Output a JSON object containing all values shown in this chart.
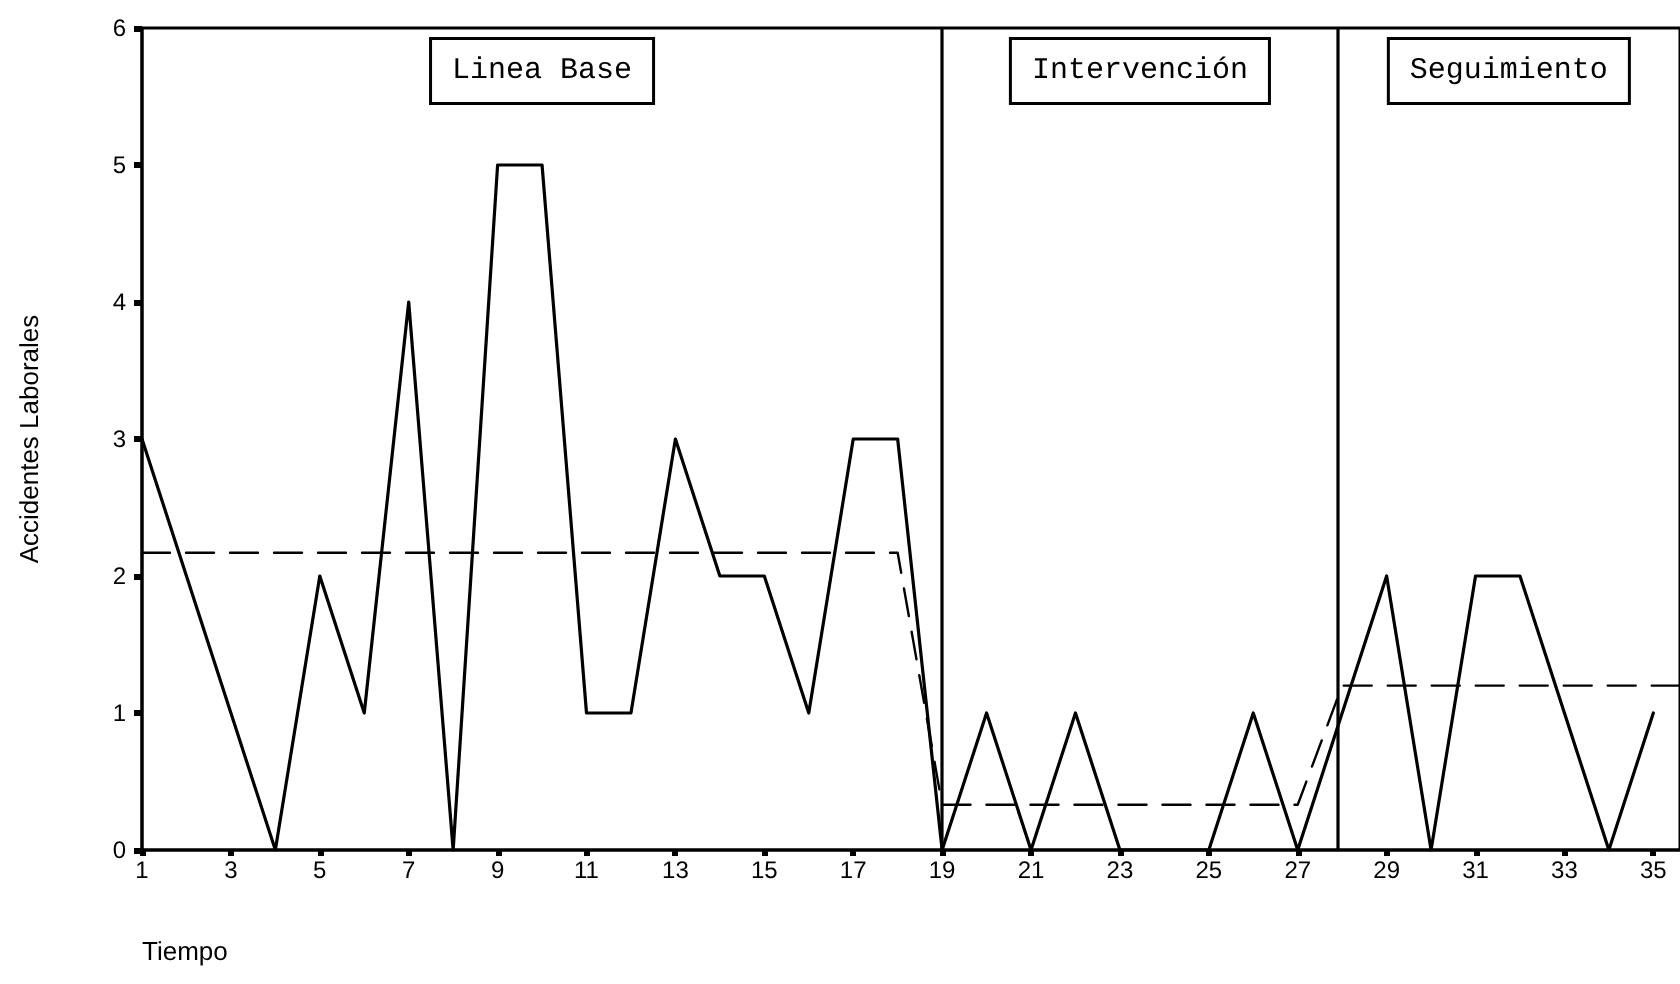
{
  "chart_data": {
    "type": "line",
    "xlabel": "Tiempo",
    "ylabel": "Accidentes Laborales",
    "annotations": [
      "Linea Base",
      "Intervención",
      "Seguimiento"
    ],
    "series": [
      {
        "color": "#000000",
        "x": [
          1,
          2,
          3,
          4,
          5,
          6,
          7,
          8,
          9,
          10,
          11,
          12,
          13,
          14,
          15,
          16,
          17,
          18,
          19,
          20,
          21,
          22,
          23,
          24,
          25,
          26,
          27,
          28,
          29,
          30,
          31,
          32,
          33,
          34,
          35
        ],
        "values": [
          3,
          2,
          1,
          0,
          2,
          1,
          4,
          0,
          5,
          5,
          1,
          1,
          3,
          2,
          2,
          1,
          3,
          3,
          0,
          1,
          0,
          1,
          0,
          0,
          0,
          1,
          0,
          1,
          2,
          0,
          2,
          2,
          1,
          0,
          1
        ],
        "line_style": "solid"
      },
      {
        "color": "#000000",
        "x": [
          1,
          18,
          19,
          27,
          28,
          35.6
        ],
        "values": [
          2.17,
          2.17,
          0.33,
          0.33,
          1.2,
          1.2
        ],
        "line_style": "dashed"
      }
    ],
    "xlim": [
      1,
      35.6
    ],
    "xticks": [
      1,
      3,
      5,
      7,
      9,
      11,
      13,
      15,
      17,
      19,
      21,
      23,
      25,
      27,
      29,
      31,
      33,
      35
    ],
    "ylim": [
      0,
      6
    ],
    "yticks": [
      0,
      1,
      2,
      3,
      4,
      5,
      6
    ],
    "ref_lines": [
      {
        "axis": "x",
        "value": 19,
        "color": "#000000"
      },
      {
        "axis": "x",
        "value": 27.9,
        "color": "#000000"
      }
    ],
    "grid": false,
    "marker": "none"
  }
}
